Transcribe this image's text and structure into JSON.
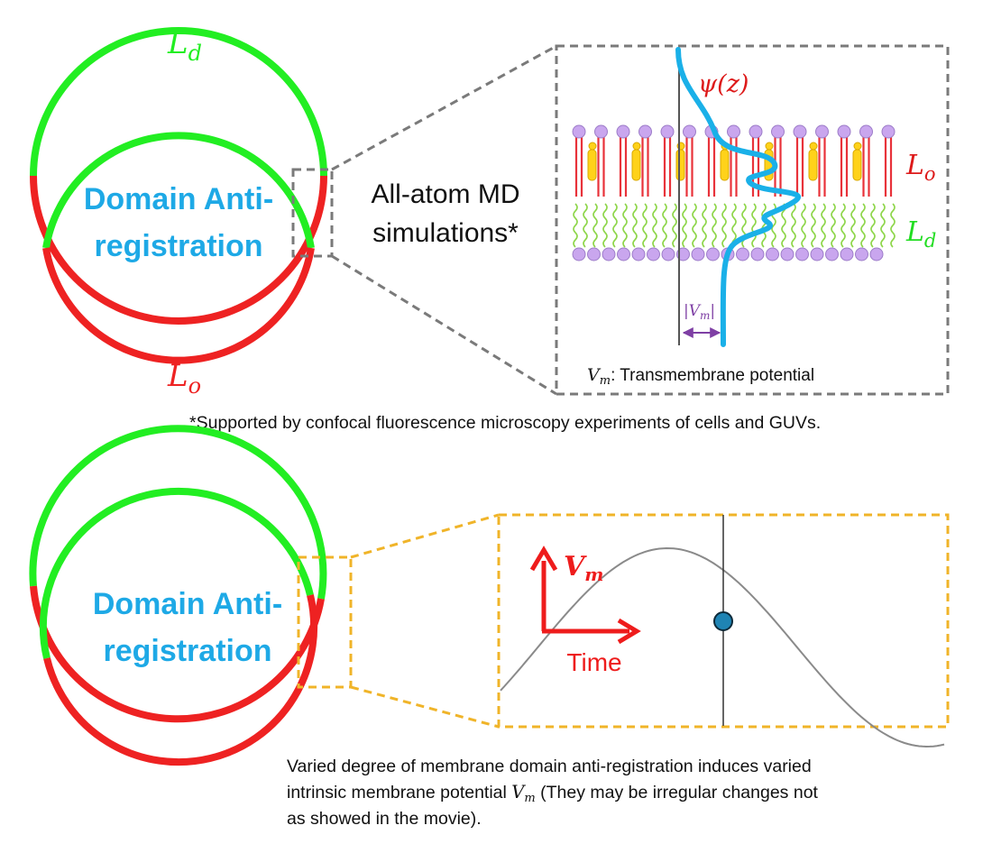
{
  "colors": {
    "ld_green": "#22ee22",
    "lo_red": "#ee2222",
    "title_blue": "#1ea9e6",
    "potential_blue": "#1ab0e8",
    "dash_gray": "#7a7a7a",
    "dash_orange": "#f0b429",
    "arrow_red": "#ee1c1c",
    "vm_purple": "#7e3fa4",
    "head_purple": "#c9a6ee",
    "sterol_yellow": "#ffd21a",
    "dot_blue": "#1f84b4"
  },
  "top": {
    "ring_label": "Domain Anti-registration",
    "ring_label_line1": "Domain Anti-",
    "ring_label_line2": "registration",
    "ld_label": "L",
    "ld_sub": "d",
    "lo_label": "L",
    "lo_sub": "o",
    "md_text_line1": "All-atom MD",
    "md_text_line2": "simulations*",
    "inset": {
      "psi": "ψ(z)",
      "lo_label": "L",
      "lo_sub": "o",
      "ld_label": "L",
      "ld_sub": "d",
      "vm_abs_label": "|V",
      "vm_abs_sub": "m",
      "vm_abs_close": "|",
      "caption_symbol": "V",
      "caption_sub": "m",
      "caption_text": ": Transmembrane potential"
    },
    "footnote": "*Supported by confocal fluorescence microscopy experiments of cells and GUVs."
  },
  "bottom": {
    "ring_label_line1": "Domain Anti-",
    "ring_label_line2": "registration",
    "plot": {
      "y_axis_symbol": "V",
      "y_axis_sub": "m",
      "x_axis_label": "Time"
    },
    "caption_line1": "Varied degree of membrane domain anti-registration induces varied",
    "caption_line2_a": "intrinsic membrane potential ",
    "caption_line2_sym": "V",
    "caption_line2_sub": "m",
    "caption_line2_b": " (They may be irregular changes not",
    "caption_line3": "as showed in the movie)."
  }
}
